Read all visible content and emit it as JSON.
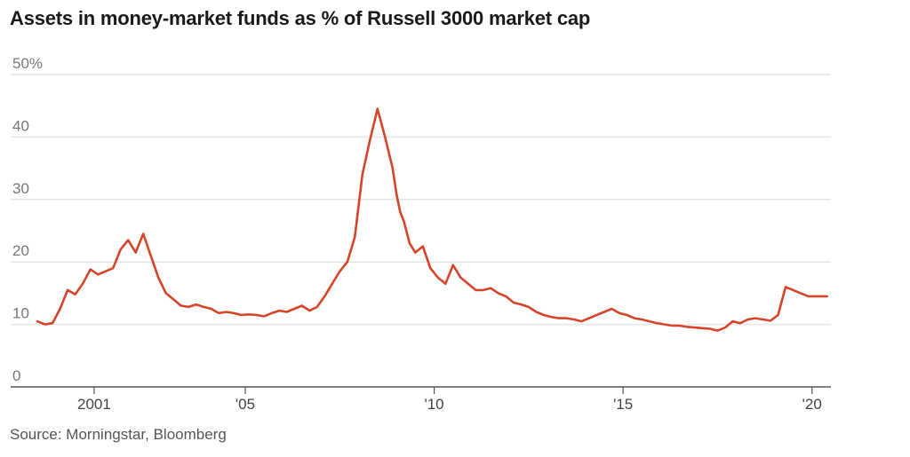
{
  "chart_data": {
    "type": "line",
    "title": "Assets in money-market funds as % of Russell 3000 market cap",
    "source": "Source: Morningstar, Bloomberg",
    "ylim": [
      0,
      50
    ],
    "xlim": [
      1999.45,
      2020.5
    ],
    "y_ticks": [
      {
        "value": 0,
        "label": "0"
      },
      {
        "value": 10,
        "label": "10"
      },
      {
        "value": 20,
        "label": "20"
      },
      {
        "value": 30,
        "label": "30"
      },
      {
        "value": 40,
        "label": "40"
      },
      {
        "value": 50,
        "label": "50%"
      }
    ],
    "x_ticks": [
      {
        "value": 2001,
        "label": "2001"
      },
      {
        "value": 2005,
        "label": "'05"
      },
      {
        "value": 2010,
        "label": "'10"
      },
      {
        "value": 2015,
        "label": "'15"
      },
      {
        "value": 2020,
        "label": "'20"
      }
    ],
    "grid": true,
    "colors": {
      "line": "#d6452a",
      "grid": "#e6e6e6",
      "axis": "#555555"
    },
    "series": [
      {
        "x": [
          1999.5,
          1999.7,
          1999.9,
          2000.1,
          2000.3,
          2000.5,
          2000.7,
          2000.9,
          2001.1,
          2001.3,
          2001.5,
          2001.7,
          2001.9,
          2002.1,
          2002.3,
          2002.5,
          2002.7,
          2002.9,
          2003.1,
          2003.3,
          2003.5,
          2003.7,
          2003.9,
          2004.1,
          2004.3,
          2004.5,
          2004.7,
          2004.9,
          2005.1,
          2005.3,
          2005.5,
          2005.7,
          2005.9,
          2006.1,
          2006.3,
          2006.5,
          2006.7,
          2006.9,
          2007.1,
          2007.3,
          2007.5,
          2007.7,
          2007.9,
          2008.1,
          2008.3,
          2008.5,
          2008.7,
          2008.9,
          2009.0,
          2009.1,
          2009.2,
          2009.35,
          2009.5,
          2009.7,
          2009.9,
          2010.1,
          2010.3,
          2010.5,
          2010.7,
          2010.9,
          2011.1,
          2011.3,
          2011.5,
          2011.7,
          2011.9,
          2012.1,
          2012.3,
          2012.5,
          2012.7,
          2012.9,
          2013.1,
          2013.3,
          2013.5,
          2013.7,
          2013.9,
          2014.1,
          2014.3,
          2014.5,
          2014.7,
          2014.9,
          2015.1,
          2015.3,
          2015.5,
          2015.7,
          2015.9,
          2016.1,
          2016.3,
          2016.5,
          2016.7,
          2016.9,
          2017.1,
          2017.3,
          2017.5,
          2017.7,
          2017.9,
          2018.1,
          2018.3,
          2018.5,
          2018.7,
          2018.9,
          2019.1,
          2019.3,
          2019.5,
          2019.7,
          2019.9,
          2020.1,
          2020.2,
          2020.3,
          2020.4
        ],
        "values": [
          10.5,
          10.0,
          10.2,
          12.5,
          15.5,
          14.8,
          16.5,
          18.8,
          18.0,
          18.5,
          19.0,
          22.0,
          23.5,
          21.5,
          24.5,
          21.0,
          17.5,
          15.0,
          14.0,
          13.0,
          12.8,
          13.2,
          12.8,
          12.5,
          11.8,
          12.0,
          11.8,
          11.5,
          11.6,
          11.5,
          11.3,
          11.8,
          12.2,
          12.0,
          12.5,
          13.0,
          12.2,
          12.8,
          14.5,
          16.5,
          18.5,
          20.0,
          24.0,
          34.0,
          39.5,
          44.5,
          40.0,
          35.0,
          31.0,
          28.0,
          26.5,
          23.0,
          21.5,
          22.5,
          19.0,
          17.5,
          16.5,
          19.5,
          17.5,
          16.5,
          15.5,
          15.5,
          15.8,
          15.0,
          14.5,
          13.5,
          13.2,
          12.8,
          12.0,
          11.5,
          11.2,
          11.0,
          11.0,
          10.8,
          10.5,
          11.0,
          11.5,
          12.0,
          12.5,
          11.8,
          11.5,
          11.0,
          10.8,
          10.5,
          10.2,
          10.0,
          9.8,
          9.8,
          9.6,
          9.5,
          9.4,
          9.3,
          9.0,
          9.5,
          10.5,
          10.2,
          10.8,
          11.0,
          10.8,
          10.6,
          11.5,
          16.0,
          15.5,
          15.0,
          14.5,
          14.5,
          14.5,
          14.5,
          14.5
        ]
      }
    ]
  }
}
